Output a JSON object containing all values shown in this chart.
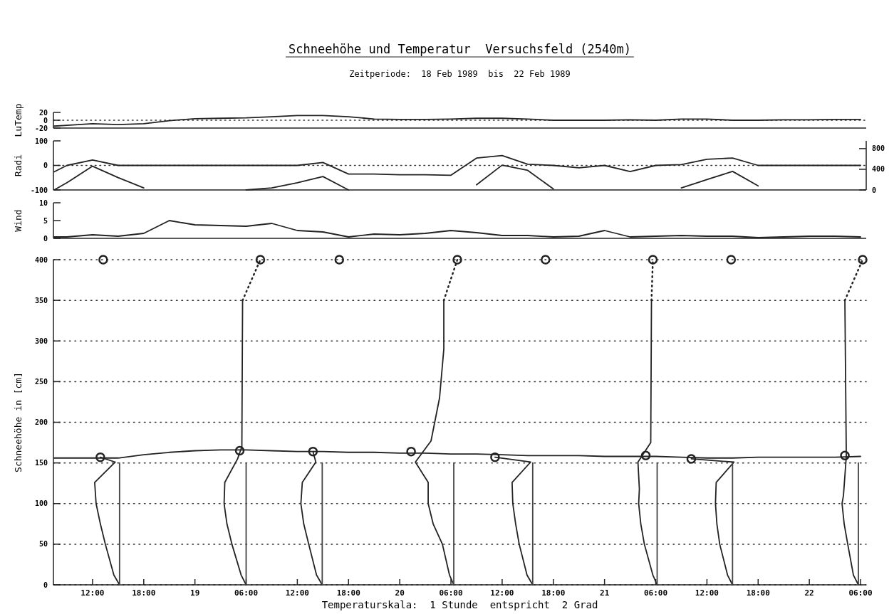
{
  "chart_data": [
    {
      "type": "line",
      "title": "Schneehöhe und Temperatur  Versuchsfeld (2540m)",
      "subtitle": "Zeitperiode:  18 Feb 1989  bis  22 Feb 1989",
      "ylabel": "LuTemp",
      "ylim": [
        -20,
        20
      ],
      "yticks": [
        -20,
        0,
        20
      ],
      "tick_labels": "y",
      "xlim": [
        "1989-02-18T07:25",
        "1989-02-22T06:40"
      ],
      "x": [
        "1989-02-18T07:30",
        "1989-02-18T09:00",
        "1989-02-18T12:00",
        "1989-02-18T15:00",
        "1989-02-18T18:00",
        "1989-02-18T21:00",
        "1989-02-19T00:00",
        "1989-02-19T03:00",
        "1989-02-19T06:00",
        "1989-02-19T09:00",
        "1989-02-19T12:00",
        "1989-02-19T15:00",
        "1989-02-19T18:00",
        "1989-02-19T21:00",
        "1989-02-20T00:00",
        "1989-02-20T03:00",
        "1989-02-20T06:00",
        "1989-02-20T09:00",
        "1989-02-20T12:00",
        "1989-02-20T15:00",
        "1989-02-20T18:00",
        "1989-02-20T21:00",
        "1989-02-21T00:00",
        "1989-02-21T03:00",
        "1989-02-21T06:00",
        "1989-02-21T09:00",
        "1989-02-21T12:00",
        "1989-02-21T15:00",
        "1989-02-21T18:00",
        "1989-02-21T21:00",
        "1989-02-22T00:00",
        "1989-02-22T03:00",
        "1989-02-22T06:00"
      ],
      "ref_lines": [
        {
          "axis": "y",
          "value": 0,
          "line_style": "dotted"
        }
      ],
      "series": [
        {
          "color": "#222222",
          "values": [
            -15,
            -13,
            -9,
            -11,
            -9,
            -1,
            4,
            5,
            6,
            9,
            12,
            12,
            9,
            3,
            2,
            2,
            3,
            5,
            5,
            3,
            0,
            0,
            0,
            1,
            0,
            3,
            3,
            0,
            0,
            1,
            1,
            2,
            2
          ]
        }
      ]
    },
    {
      "type": "line",
      "ylabel": "Radi",
      "ylim": [
        -100,
        100
      ],
      "yticks": [
        -100,
        0,
        100
      ],
      "y2lim": [
        0,
        950
      ],
      "y2ticks": [
        0,
        400,
        800
      ],
      "tick_labels": "y",
      "xlim": [
        "1989-02-18T07:25",
        "1989-02-22T06:40"
      ],
      "x": [
        "1989-02-18T07:30",
        "1989-02-18T09:00",
        "1989-02-18T12:00",
        "1989-02-18T15:00",
        "1989-02-18T18:00",
        "1989-02-18T21:00",
        "1989-02-19T00:00",
        "1989-02-19T03:00",
        "1989-02-19T06:00",
        "1989-02-19T09:00",
        "1989-02-19T12:00",
        "1989-02-19T15:00",
        "1989-02-19T18:00",
        "1989-02-19T21:00",
        "1989-02-20T00:00",
        "1989-02-20T03:00",
        "1989-02-20T06:00",
        "1989-02-20T09:00",
        "1989-02-20T12:00",
        "1989-02-20T15:00",
        "1989-02-20T18:00",
        "1989-02-20T21:00",
        "1989-02-21T00:00",
        "1989-02-21T03:00",
        "1989-02-21T06:00",
        "1989-02-21T09:00",
        "1989-02-21T12:00",
        "1989-02-21T15:00",
        "1989-02-21T18:00",
        "1989-02-21T21:00",
        "1989-02-22T00:00",
        "1989-02-22T03:00",
        "1989-02-22T06:00"
      ],
      "ref_lines": [
        {
          "axis": "y",
          "value": 0,
          "line_style": "dotted"
        }
      ],
      "series": [
        {
          "color": "#222222",
          "values": [
            -26,
            0,
            22,
            0,
            0,
            0,
            0,
            0,
            0,
            0,
            0,
            12,
            -35,
            -35,
            -38,
            -38,
            -40,
            30,
            40,
            5,
            0,
            -10,
            0,
            -25,
            0,
            3,
            25,
            30,
            0,
            0,
            0,
            0,
            0
          ]
        },
        {
          "color": "#222222",
          "axis": "y2",
          "values": [
            0,
            140,
            460,
            240,
            40,
            null,
            null,
            null,
            0,
            40,
            140,
            260,
            0,
            null,
            null,
            null,
            null,
            100,
            480,
            380,
            20,
            null,
            null,
            null,
            null,
            40,
            200,
            360,
            80,
            null,
            null,
            null,
            null
          ]
        }
      ]
    },
    {
      "type": "line",
      "ylabel": "Wind",
      "ylim": [
        0,
        10
      ],
      "yticks": [
        0,
        5,
        10
      ],
      "tick_labels": "y",
      "xlim": [
        "1989-02-18T07:25",
        "1989-02-22T06:40"
      ],
      "x": [
        "1989-02-18T07:30",
        "1989-02-18T09:00",
        "1989-02-18T12:00",
        "1989-02-18T15:00",
        "1989-02-18T18:00",
        "1989-02-18T21:00",
        "1989-02-19T00:00",
        "1989-02-19T03:00",
        "1989-02-19T06:00",
        "1989-02-19T09:00",
        "1989-02-19T12:00",
        "1989-02-19T15:00",
        "1989-02-19T18:00",
        "1989-02-19T21:00",
        "1989-02-20T00:00",
        "1989-02-20T03:00",
        "1989-02-20T06:00",
        "1989-02-20T09:00",
        "1989-02-20T12:00",
        "1989-02-20T15:00",
        "1989-02-20T18:00",
        "1989-02-20T21:00",
        "1989-02-21T00:00",
        "1989-02-21T03:00",
        "1989-02-21T06:00",
        "1989-02-21T09:00",
        "1989-02-21T12:00",
        "1989-02-21T15:00",
        "1989-02-21T18:00",
        "1989-02-21T21:00",
        "1989-02-22T00:00",
        "1989-02-22T03:00",
        "1989-02-22T06:00"
      ],
      "series": [
        {
          "color": "#222222",
          "values": [
            0.4,
            0.4,
            1,
            0.6,
            1.4,
            5,
            3.8,
            3.6,
            3.4,
            4.2,
            2.2,
            1.8,
            0.4,
            1.2,
            1,
            1.4,
            2.2,
            1.6,
            0.8,
            0.8,
            0.4,
            0.6,
            2.2,
            0.4,
            0.6,
            0.8,
            0.6,
            0.6,
            0.2,
            0.4,
            0.6,
            0.6,
            0.4
          ]
        }
      ]
    },
    {
      "type": "line",
      "ylabel": "Schneehöhe in [cm]",
      "xlabel": "Temperaturskala:  1 Stunde  entspricht  2 Grad",
      "ylim": [
        0,
        400
      ],
      "yticks": [
        0,
        50,
        100,
        150,
        200,
        250,
        300,
        350,
        400
      ],
      "grid": "y",
      "xlim": [
        "1989-02-18T07:25",
        "1989-02-22T06:40"
      ],
      "xticks": [
        {
          "value": "1989-02-18T12:00",
          "label": "12:00"
        },
        {
          "value": "1989-02-18T18:00",
          "label": "18:00"
        },
        {
          "value": "1989-02-19T00:00",
          "label": "19"
        },
        {
          "value": "1989-02-19T06:00",
          "label": "06:00"
        },
        {
          "value": "1989-02-19T12:00",
          "label": "12:00"
        },
        {
          "value": "1989-02-19T18:00",
          "label": "18:00"
        },
        {
          "value": "1989-02-20T00:00",
          "label": "20"
        },
        {
          "value": "1989-02-20T06:00",
          "label": "06:00"
        },
        {
          "value": "1989-02-20T12:00",
          "label": "12:00"
        },
        {
          "value": "1989-02-20T18:00",
          "label": "18:00"
        },
        {
          "value": "1989-02-21T00:00",
          "label": "21"
        },
        {
          "value": "1989-02-21T06:00",
          "label": "06:00"
        },
        {
          "value": "1989-02-21T12:00",
          "label": "12:00"
        },
        {
          "value": "1989-02-21T18:00",
          "label": "18:00"
        },
        {
          "value": "1989-02-22T00:00",
          "label": "22"
        },
        {
          "value": "1989-02-22T06:00",
          "label": "06:00"
        }
      ],
      "x": [
        "1989-02-18T07:30",
        "1989-02-18T09:00",
        "1989-02-18T12:00",
        "1989-02-18T15:00",
        "1989-02-18T18:00",
        "1989-02-18T21:00",
        "1989-02-19T00:00",
        "1989-02-19T03:00",
        "1989-02-19T06:00",
        "1989-02-19T09:00",
        "1989-02-19T12:00",
        "1989-02-19T15:00",
        "1989-02-19T18:00",
        "1989-02-19T21:00",
        "1989-02-20T00:00",
        "1989-02-20T03:00",
        "1989-02-20T06:00",
        "1989-02-20T09:00",
        "1989-02-20T12:00",
        "1989-02-20T15:00",
        "1989-02-20T18:00",
        "1989-02-20T21:00",
        "1989-02-21T00:00",
        "1989-02-21T03:00",
        "1989-02-21T06:00",
        "1989-02-21T09:00",
        "1989-02-21T12:00",
        "1989-02-21T15:00",
        "1989-02-21T18:00",
        "1989-02-21T21:00",
        "1989-02-22T00:00",
        "1989-02-22T03:00",
        "1989-02-22T06:00"
      ],
      "series": [
        {
          "color": "#222222",
          "values": [
            156,
            156,
            156,
            156,
            160,
            163,
            165,
            166,
            166,
            165,
            164,
            164,
            163,
            163,
            162,
            162,
            161,
            161,
            160,
            159,
            159,
            159,
            158,
            158,
            158,
            157,
            156,
            156,
            157,
            157,
            157,
            157,
            158
          ]
        },
        {
          "color": "#222222",
          "x": [
            "1989-02-18T15:10",
            "1989-02-18T14:30",
            "1989-02-18T13:30",
            "1989-02-18T12:55",
            "1989-02-18T12:25",
            "1989-02-18T12:15",
            "1989-02-18T14:40",
            "1989-02-18T12:55"
          ],
          "values": [
            0,
            12,
            50,
            75,
            100,
            126,
            151,
            157
          ]
        },
        {
          "color": "#222222",
          "x": [
            "1989-02-19T06:00",
            "1989-02-19T05:25",
            "1989-02-19T04:20",
            "1989-02-19T03:45",
            "1989-02-19T03:25",
            "1989-02-19T03:30",
            "1989-02-19T05:00",
            "1989-02-19T05:30",
            "1989-02-19T05:35"
          ],
          "values": [
            0,
            12,
            50,
            75,
            100,
            126,
            155,
            170,
            350
          ]
        },
        {
          "color": "#222222",
          "x": [
            "1989-02-19T14:55",
            "1989-02-19T14:15",
            "1989-02-19T13:20",
            "1989-02-19T12:45",
            "1989-02-19T12:25",
            "1989-02-19T12:35",
            "1989-02-19T14:10",
            "1989-02-19T13:50"
          ],
          "values": [
            0,
            12,
            50,
            75,
            100,
            126,
            151,
            164
          ]
        },
        {
          "color": "#222222",
          "x": [
            "1989-02-20T06:20",
            "1989-02-20T05:50",
            "1989-02-20T05:00",
            "1989-02-20T03:55",
            "1989-02-20T03:20",
            "1989-02-20T03:20",
            "1989-02-20T01:50",
            "1989-02-20T03:40",
            "1989-02-20T04:40",
            "1989-02-20T05:10",
            "1989-02-20T05:10"
          ],
          "values": [
            0,
            12,
            50,
            75,
            100,
            126,
            151,
            177,
            230,
            290,
            350
          ]
        },
        {
          "color": "#222222",
          "x": [
            "1989-02-20T15:35",
            "1989-02-20T14:55",
            "1989-02-20T14:00",
            "1989-02-20T13:35",
            "1989-02-20T13:15",
            "1989-02-20T13:10",
            "1989-02-20T15:20",
            "1989-02-20T11:10"
          ],
          "values": [
            0,
            12,
            50,
            75,
            100,
            126,
            151,
            157
          ]
        },
        {
          "color": "#222222",
          "x": [
            "1989-02-21T06:10",
            "1989-02-21T05:40",
            "1989-02-21T04:40",
            "1989-02-21T04:15",
            "1989-02-21T04:00",
            "1989-02-21T04:05",
            "1989-02-21T03:55",
            "1989-02-21T05:25",
            "1989-02-21T05:30"
          ],
          "values": [
            0,
            12,
            50,
            75,
            100,
            118,
            151,
            175,
            350
          ]
        },
        {
          "color": "#222222",
          "x": [
            "1989-02-21T15:00",
            "1989-02-21T14:25",
            "1989-02-21T13:30",
            "1989-02-21T13:10",
            "1989-02-21T13:00",
            "1989-02-21T13:05",
            "1989-02-21T15:10",
            "1989-02-21T10:10"
          ],
          "values": [
            0,
            12,
            50,
            75,
            100,
            126,
            151,
            155
          ]
        },
        {
          "color": "#222222",
          "x": [
            "1989-02-22T05:45",
            "1989-02-22T05:10",
            "1989-02-22T04:30",
            "1989-02-22T04:05",
            "1989-02-22T03:50",
            "1989-02-22T04:00",
            "1989-02-22T04:20",
            "1989-02-22T04:10"
          ],
          "values": [
            0,
            12,
            50,
            75,
            100,
            110,
            158,
            350
          ]
        },
        {
          "color": "#444444",
          "x": [
            "1989-02-18T15:10",
            "1989-02-18T15:10"
          ],
          "values": [
            0,
            150
          ]
        },
        {
          "color": "#444444",
          "x": [
            "1989-02-19T06:00",
            "1989-02-19T06:00"
          ],
          "values": [
            0,
            150
          ]
        },
        {
          "color": "#444444",
          "x": [
            "1989-02-19T14:55",
            "1989-02-19T14:55"
          ],
          "values": [
            0,
            150
          ]
        },
        {
          "color": "#444444",
          "x": [
            "1989-02-20T06:20",
            "1989-02-20T06:20"
          ],
          "values": [
            0,
            150
          ]
        },
        {
          "color": "#444444",
          "x": [
            "1989-02-20T15:35",
            "1989-02-20T15:35"
          ],
          "values": [
            0,
            150
          ]
        },
        {
          "color": "#444444",
          "x": [
            "1989-02-21T06:10",
            "1989-02-21T06:10"
          ],
          "values": [
            0,
            150
          ]
        },
        {
          "color": "#444444",
          "x": [
            "1989-02-21T15:00",
            "1989-02-21T15:00"
          ],
          "values": [
            0,
            150
          ]
        },
        {
          "color": "#444444",
          "x": [
            "1989-02-22T05:45",
            "1989-02-22T05:45"
          ],
          "values": [
            0,
            150
          ]
        },
        {
          "color": "#222222",
          "line_style": "dotted",
          "x": [
            "1989-02-19T05:35",
            "1989-02-19T07:40"
          ],
          "values": [
            350,
            400
          ]
        },
        {
          "color": "#222222",
          "line_style": "dotted",
          "x": [
            "1989-02-20T05:10",
            "1989-02-20T06:45"
          ],
          "values": [
            350,
            400
          ]
        },
        {
          "color": "#222222",
          "line_style": "dotted",
          "x": [
            "1989-02-21T05:30",
            "1989-02-21T05:40"
          ],
          "values": [
            350,
            400
          ]
        },
        {
          "color": "#222222",
          "line_style": "dotted",
          "x": [
            "1989-02-22T04:10",
            "1989-02-22T06:15"
          ],
          "values": [
            350,
            400
          ]
        },
        {
          "type": "scatter",
          "marker": "circle",
          "color": "#222222",
          "x": [
            "1989-02-18T13:15",
            "1989-02-19T07:40",
            "1989-02-19T16:55",
            "1989-02-20T06:45",
            "1989-02-20T17:05",
            "1989-02-21T05:40",
            "1989-02-21T14:50",
            "1989-02-22T06:15"
          ],
          "values": [
            400,
            400,
            400,
            400,
            400,
            400,
            400,
            400
          ]
        },
        {
          "type": "scatter",
          "marker": "circle",
          "color": "#222222",
          "x": [
            "1989-02-18T12:55",
            "1989-02-19T05:15",
            "1989-02-19T13:50",
            "1989-02-20T01:20",
            "1989-02-20T11:10",
            "1989-02-21T04:50",
            "1989-02-21T10:10",
            "1989-02-22T04:10"
          ],
          "values": [
            157,
            165,
            164,
            164,
            157,
            159,
            155,
            159
          ]
        }
      ]
    }
  ]
}
